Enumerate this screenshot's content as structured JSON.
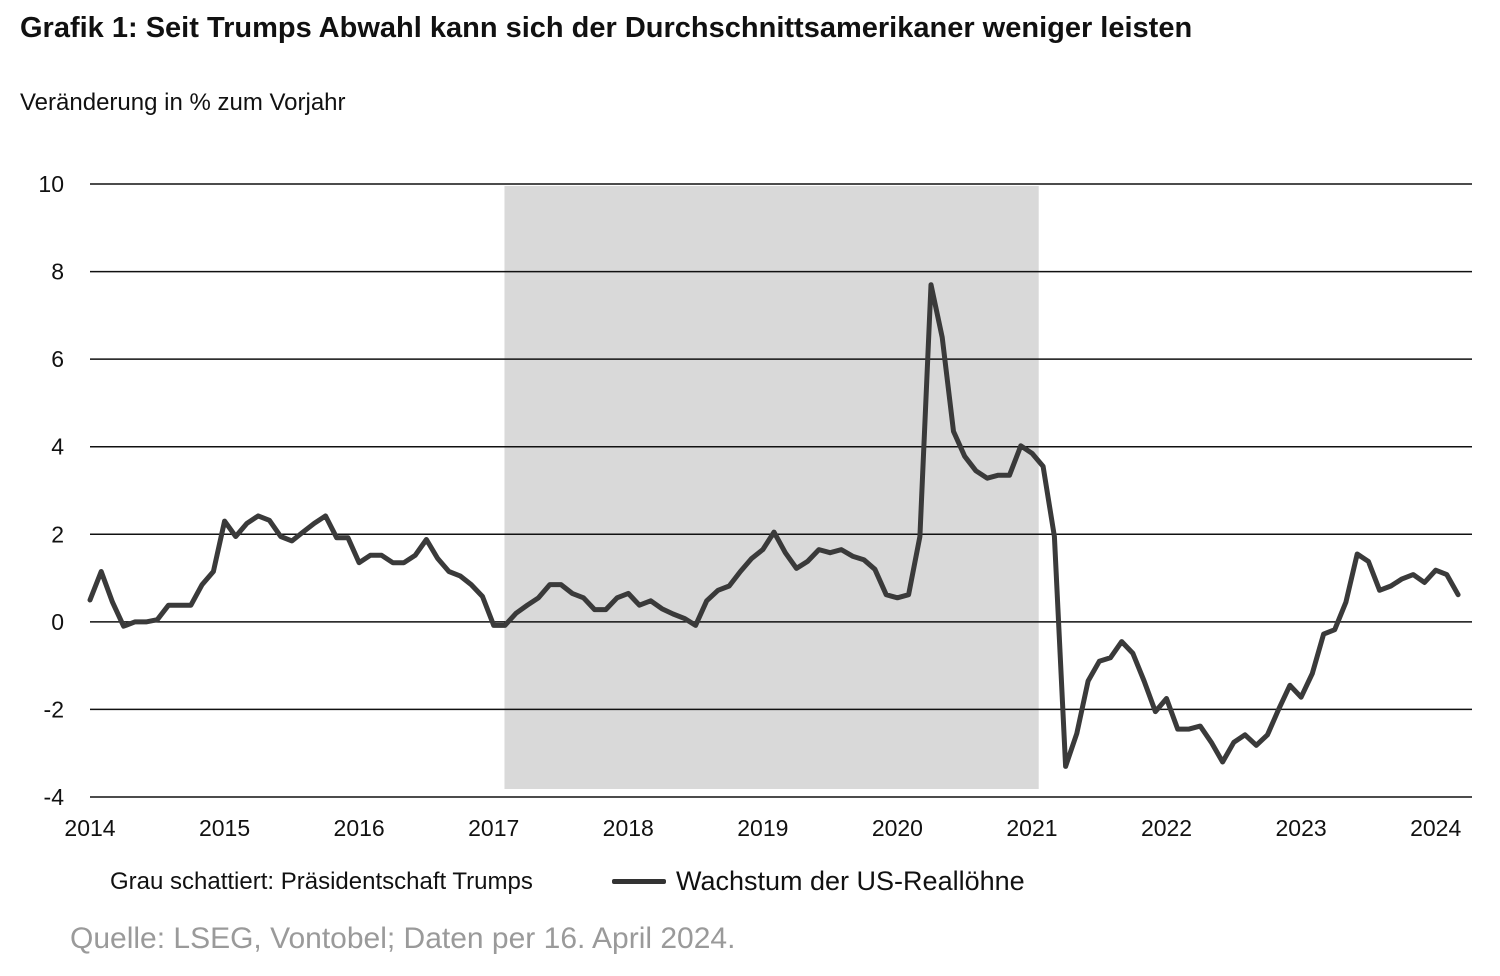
{
  "chart_data": {
    "type": "line",
    "title": "Grafik 1: Seit Trumps Abwahl kann sich der Durchschnittsamerikaner weniger leisten",
    "ylabel": "Veränderung in % zum Vorjahr",
    "xlabel": "",
    "ylim": [
      -4,
      10
    ],
    "yticks": [
      10,
      8,
      6,
      4,
      2,
      0,
      -2,
      -4
    ],
    "xlim": [
      2014,
      2024.27
    ],
    "xticks": [
      2014,
      2015,
      2016,
      2017,
      2018,
      2019,
      2020,
      2021,
      2022,
      2023,
      2024
    ],
    "grid": "horizontal",
    "shaded_region": {
      "label": "Grau schattiert: Präsidentschaft Trumps",
      "x_start": 2017.08,
      "x_end": 2021.05,
      "color": "#d9d9d9"
    },
    "series": [
      {
        "name": "Wachstum der US-Reallöhne",
        "color": "#3a3a3a",
        "x": [
          2014.0,
          2014.083,
          2014.167,
          2014.25,
          2014.333,
          2014.417,
          2014.5,
          2014.583,
          2014.667,
          2014.75,
          2014.833,
          2014.917,
          2015.0,
          2015.083,
          2015.167,
          2015.25,
          2015.333,
          2015.417,
          2015.5,
          2015.583,
          2015.667,
          2015.75,
          2015.833,
          2015.917,
          2016.0,
          2016.083,
          2016.167,
          2016.25,
          2016.333,
          2016.417,
          2016.5,
          2016.583,
          2016.667,
          2016.75,
          2016.833,
          2016.917,
          2017.0,
          2017.083,
          2017.167,
          2017.25,
          2017.333,
          2017.417,
          2017.5,
          2017.583,
          2017.667,
          2017.75,
          2017.833,
          2017.917,
          2018.0,
          2018.083,
          2018.167,
          2018.25,
          2018.333,
          2018.417,
          2018.5,
          2018.583,
          2018.667,
          2018.75,
          2018.833,
          2018.917,
          2019.0,
          2019.083,
          2019.167,
          2019.25,
          2019.333,
          2019.417,
          2019.5,
          2019.583,
          2019.667,
          2019.75,
          2019.833,
          2019.917,
          2020.0,
          2020.083,
          2020.167,
          2020.25,
          2020.333,
          2020.417,
          2020.5,
          2020.583,
          2020.667,
          2020.75,
          2020.833,
          2020.917,
          2021.0,
          2021.083,
          2021.167,
          2021.25,
          2021.333,
          2021.417,
          2021.5,
          2021.583,
          2021.667,
          2021.75,
          2021.833,
          2021.917,
          2022.0,
          2022.083,
          2022.167,
          2022.25,
          2022.333,
          2022.417,
          2022.5,
          2022.583,
          2022.667,
          2022.75,
          2022.833,
          2022.917,
          2023.0,
          2023.083,
          2023.167,
          2023.25,
          2023.333,
          2023.417,
          2023.5,
          2023.583,
          2023.667,
          2023.75,
          2023.833,
          2023.917,
          2024.0,
          2024.083,
          2024.167
        ],
        "values": [
          0.5,
          1.15,
          0.45,
          -0.1,
          0.0,
          0.0,
          0.05,
          0.38,
          0.38,
          0.38,
          0.85,
          1.15,
          2.3,
          1.95,
          2.25,
          2.42,
          2.32,
          1.95,
          1.85,
          2.05,
          2.25,
          2.42,
          1.92,
          1.92,
          1.35,
          1.52,
          1.52,
          1.35,
          1.35,
          1.52,
          1.88,
          1.45,
          1.15,
          1.05,
          0.85,
          0.58,
          -0.08,
          -0.08,
          0.2,
          0.38,
          0.55,
          0.85,
          0.85,
          0.65,
          0.55,
          0.28,
          0.28,
          0.55,
          0.65,
          0.38,
          0.48,
          0.3,
          0.18,
          0.08,
          -0.08,
          0.48,
          0.72,
          0.82,
          1.15,
          1.45,
          1.65,
          2.05,
          1.58,
          1.22,
          1.38,
          1.65,
          1.58,
          1.65,
          1.5,
          1.42,
          1.2,
          0.62,
          0.55,
          0.62,
          1.95,
          7.7,
          6.5,
          4.35,
          3.78,
          3.45,
          3.28,
          3.35,
          3.35,
          4.02,
          3.85,
          3.55,
          1.95,
          -3.3,
          -2.55,
          -1.35,
          -0.9,
          -0.82,
          -0.45,
          -0.72,
          -1.35,
          -2.05,
          -1.75,
          -2.45,
          -2.45,
          -2.38,
          -2.75,
          -3.2,
          -2.75,
          -2.58,
          -2.82,
          -2.58,
          -2.0,
          -1.45,
          -1.72,
          -1.18,
          -0.28,
          -0.18,
          0.45,
          1.55,
          1.38,
          0.72,
          0.82,
          0.98,
          1.08,
          0.9,
          1.18,
          1.08,
          0.62
        ]
      }
    ]
  },
  "source": "Quelle: LSEG, Vontobel; Daten per 16. April 2024."
}
